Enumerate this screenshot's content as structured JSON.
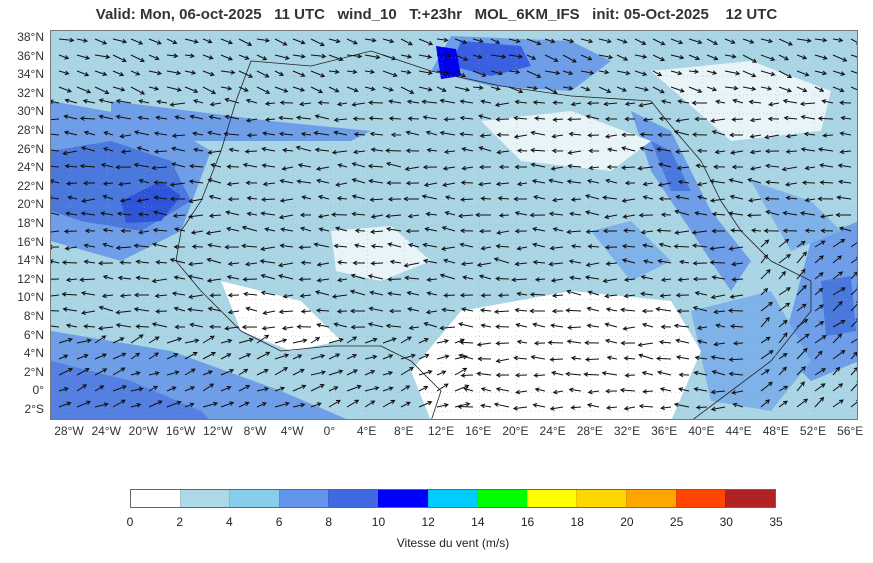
{
  "title": "Valid: Mon, 06-oct-2025   11 UTC   wind_10   T:+23hr   MOL_6KM_IFS   init: 05-Oct-2025    12 UTC",
  "lat_labels": [
    "38°N",
    "36°N",
    "34°N",
    "32°N",
    "30°N",
    "28°N",
    "26°N",
    "24°N",
    "22°N",
    "20°N",
    "18°N",
    "16°N",
    "14°N",
    "12°N",
    "10°N",
    "8°N",
    "6°N",
    "4°N",
    "2°N",
    "0°",
    "2°S"
  ],
  "lon_labels": [
    "28°W",
    "24°W",
    "20°W",
    "16°W",
    "12°W",
    "8°W",
    "4°W",
    "0°",
    "4°E",
    "8°E",
    "12°E",
    "16°E",
    "20°E",
    "24°E",
    "28°E",
    "32°E",
    "36°E",
    "40°E",
    "44°E",
    "48°E",
    "52°E",
    "56°E"
  ],
  "colorbar": {
    "ticks": [
      "0",
      "2",
      "4",
      "6",
      "8",
      "10",
      "12",
      "14",
      "16",
      "18",
      "20",
      "25",
      "30",
      "35"
    ],
    "colors": [
      "#ffffff",
      "#add8e6",
      "#87ceeb",
      "#6495ed",
      "#4169e1",
      "#0000ff",
      "#00ccff",
      "#00ff00",
      "#ffff00",
      "#ffd700",
      "#ffa500",
      "#ff4500",
      "#b22222"
    ],
    "label": "Vitesse du vent (m/s)"
  }
}
